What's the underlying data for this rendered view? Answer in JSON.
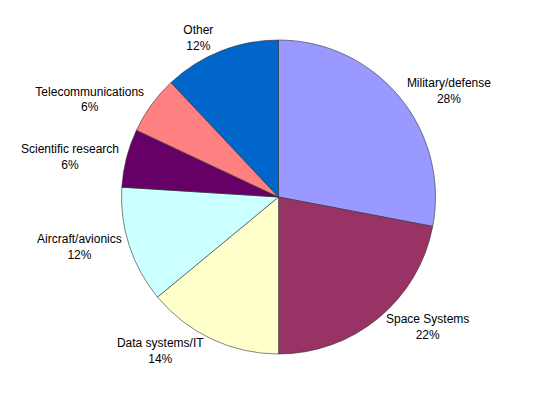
{
  "chart_data": {
    "type": "pie",
    "categories": [
      "Military/defense",
      "Space Systems",
      "Data systems/IT",
      "Aircraft/avionics",
      "Scientific research",
      "Telecommunications",
      "Other"
    ],
    "values": [
      28,
      22,
      14,
      12,
      6,
      6,
      12
    ],
    "value_labels": [
      "28%",
      "22%",
      "14%",
      "12%",
      "6%",
      "6%",
      "12%"
    ],
    "colors": [
      "#9999ff",
      "#993366",
      "#ffffcc",
      "#ccffff",
      "#660066",
      "#ff8080",
      "#0066cc"
    ],
    "data_labels": true
  }
}
